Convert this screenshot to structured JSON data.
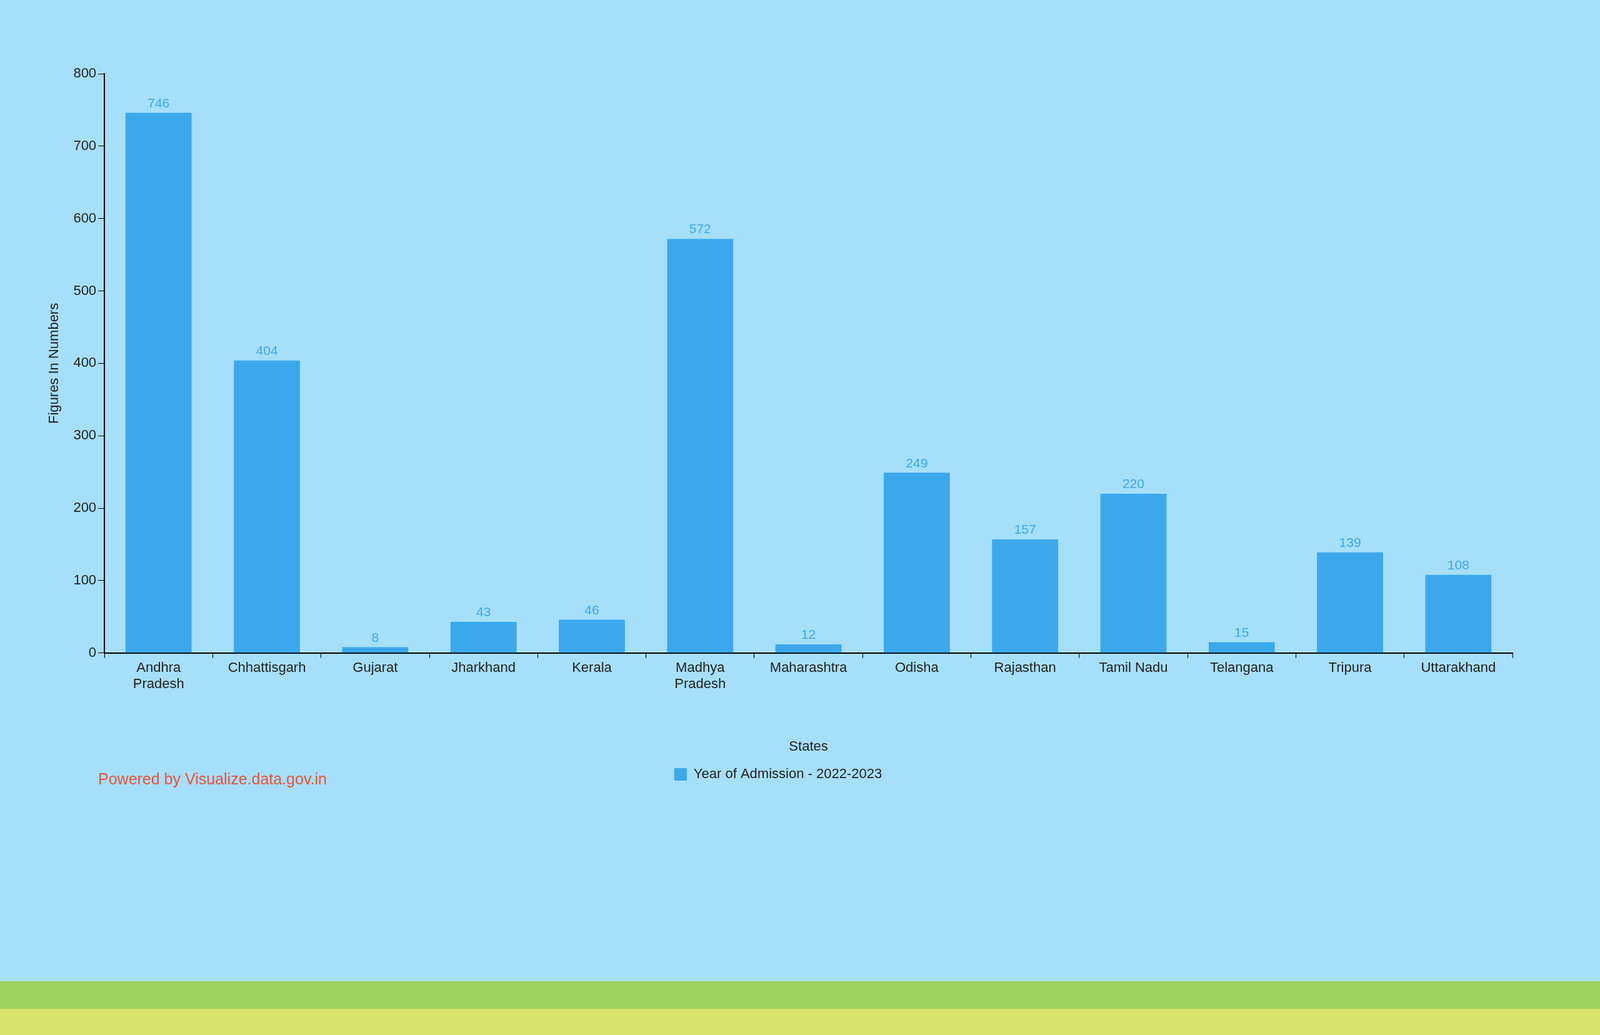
{
  "chart_data": {
    "type": "bar",
    "categories": [
      "Andhra Pradesh",
      "Chhattisgarh",
      "Gujarat",
      "Jharkhand",
      "Kerala",
      "Madhya Pradesh",
      "Maharashtra",
      "Odisha",
      "Rajasthan",
      "Tamil Nadu",
      "Telangana",
      "Tripura",
      "Uttarakhand"
    ],
    "series": [
      {
        "name": "Year of Admission - 2022-2023",
        "color": "#3ba8ec",
        "values": [
          746,
          404,
          8,
          43,
          46,
          572,
          12,
          249,
          157,
          220,
          15,
          139,
          108
        ]
      }
    ],
    "x_label": "States",
    "y_label": "Figures In Numbers",
    "ylim": [
      0,
      800
    ],
    "yticks": [
      0,
      100,
      200,
      300,
      400,
      500,
      600,
      700,
      800
    ],
    "grid": false,
    "legend": "bottom",
    "data_labels": true,
    "annotations": [
      "Powered by Visualize.data.gov.in"
    ]
  }
}
